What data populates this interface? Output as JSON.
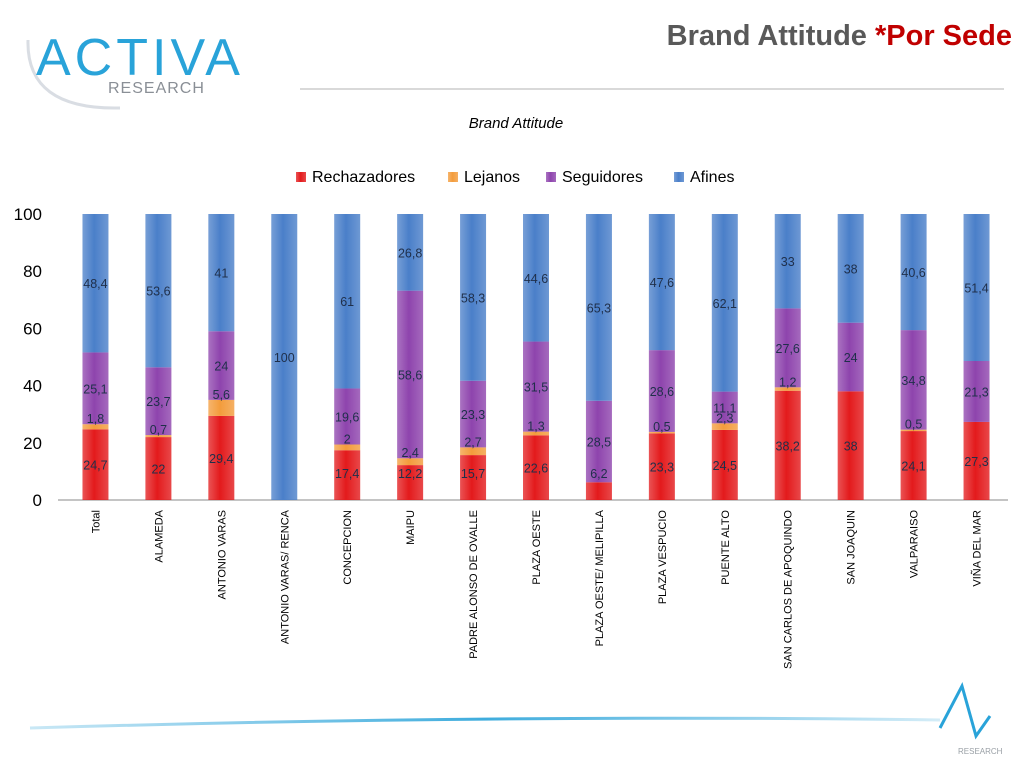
{
  "header": {
    "logo_main": "ACTIVA",
    "logo_sub": "RESEARCH",
    "title_main": "Brand Attitude",
    "title_accent": "*Por Sede"
  },
  "footer": {
    "logo_sub": "RESEARCH"
  },
  "colors": {
    "accent": "#c00000",
    "logo_blue": "#29a3d9",
    "axis_text": "#000000"
  },
  "chart_data": {
    "type": "bar",
    "stacked": true,
    "title": "Brand Attitude",
    "legend_position": "top",
    "ylim": [
      0,
      100
    ],
    "yticks": [
      0,
      20,
      40,
      60,
      80,
      100
    ],
    "grid": false,
    "categories": [
      "Total",
      "ALAMEDA",
      "ANTONIO VARAS",
      "ANTONIO VARAS/ RENCA",
      "CONCEPCION",
      "MAIPU",
      "PADRE ALONSO DE OVALLE",
      "PLAZA OESTE",
      "PLAZA OESTE/ MELIPILLA",
      "PLAZA VESPUCIO",
      "PUENTE ALTO",
      "SAN CARLOS DE APOQUINDO",
      "SAN JOAQUIN",
      "VALPARAISO",
      "VIÑA DEL MAR"
    ],
    "series": [
      {
        "name": "Rechazadores",
        "color": "#e31a1c",
        "values": [
          24.7,
          22,
          29.4,
          0,
          17.4,
          12.2,
          15.7,
          22.6,
          6.2,
          23.3,
          24.5,
          38.2,
          38,
          24.1,
          27.3
        ],
        "labels": [
          "24,7",
          "22",
          "29,4",
          "",
          "17,4",
          "12,2",
          "15,7",
          "22,6",
          "6,2",
          "23,3",
          "24,5",
          "38,2",
          "38",
          "24,1",
          "27,3"
        ]
      },
      {
        "name": "Lejanos",
        "color": "#f39c3c",
        "values": [
          1.8,
          0.7,
          5.6,
          0,
          2,
          2.4,
          2.7,
          1.3,
          0,
          0.5,
          2.3,
          1.2,
          0,
          0.5,
          0
        ],
        "labels": [
          "1,8",
          "0,7",
          "5,6",
          "",
          "2",
          "2,4",
          "2,7",
          "1,3",
          "",
          "0,5",
          "2,3",
          "1,2",
          "",
          "0,5",
          ""
        ]
      },
      {
        "name": "Seguidores",
        "color": "#8e44ad",
        "values": [
          25.1,
          23.7,
          24,
          0,
          19.6,
          58.6,
          23.3,
          31.5,
          28.5,
          28.6,
          11.1,
          27.6,
          24,
          34.8,
          21.3
        ],
        "labels": [
          "25,1",
          "23,7",
          "24",
          "",
          "19,6",
          "58,6",
          "23,3",
          "31,5",
          "28,5",
          "28,6",
          "11,1",
          "27,6",
          "24",
          "34,8",
          "21,3"
        ]
      },
      {
        "name": "Afines",
        "color": "#4a7fc9",
        "values": [
          48.4,
          53.6,
          41,
          100,
          61,
          26.8,
          58.3,
          44.6,
          65.3,
          47.6,
          62.1,
          33,
          38,
          40.6,
          51.4
        ],
        "labels": [
          "48,4",
          "53,6",
          "41",
          "100",
          "61",
          "26,8",
          "58,3",
          "44,6",
          "65,3",
          "47,6",
          "62,1",
          "33",
          "38",
          "40,6",
          "51,4"
        ]
      }
    ]
  }
}
